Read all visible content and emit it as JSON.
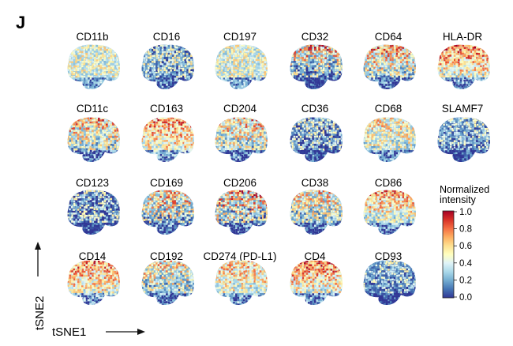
{
  "figure": {
    "panel_label": "J",
    "markers": [
      [
        "CD11b",
        "CD16",
        "CD197",
        "CD32",
        "CD64",
        "HLA-DR"
      ],
      [
        "CD11c",
        "CD163",
        "CD204",
        "CD36",
        "CD68",
        "SLAMF7"
      ],
      [
        "CD123",
        "CD169",
        "CD206",
        "CD38",
        "CD86"
      ],
      [
        "CD14",
        "CD192",
        "CD274 (PD-L1)",
        "CD4",
        "CD93"
      ]
    ],
    "x_axis_label": "tSNE1",
    "y_axis_label": "tSNE2",
    "colorbar": {
      "title_line1": "Normalized",
      "title_line2": "intensity",
      "ticks": [
        "1.0",
        "0.8",
        "0.6",
        "0.4",
        "0.2",
        "0.0"
      ],
      "colors": [
        "#313695",
        "#4575b4",
        "#74add1",
        "#abd9e9",
        "#e0f3f8",
        "#ffffbf",
        "#fee090",
        "#fdae61",
        "#f46d43",
        "#d73027",
        "#a50026"
      ]
    },
    "colormap_name": "spectral-like (blue to red)"
  }
}
